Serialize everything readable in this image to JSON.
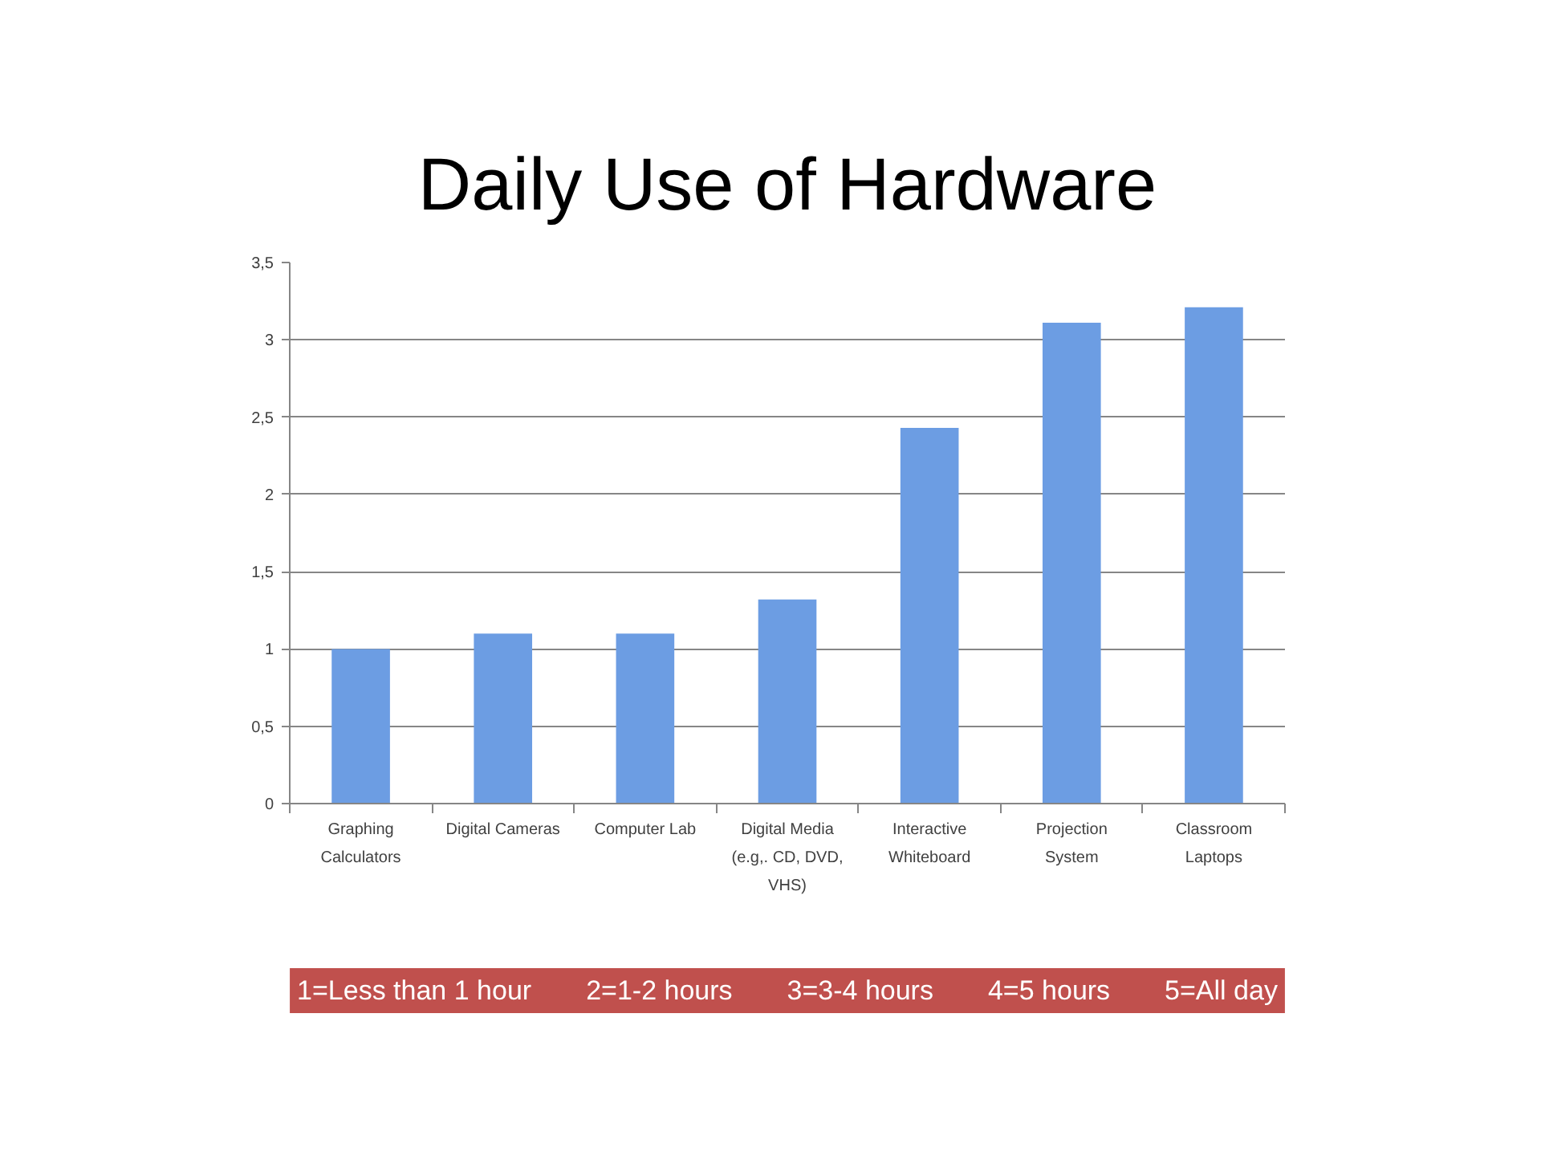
{
  "chart_data": {
    "type": "bar",
    "title": "Daily Use of Hardware",
    "categories": [
      "Graphing Calculators",
      "Digital Cameras",
      "Computer Lab",
      "Digital Media (e.g,. CD, DVD, VHS)",
      "Interactive Whiteboard",
      "Projection System",
      "Classroom Laptops"
    ],
    "values": [
      1.0,
      1.1,
      1.1,
      1.32,
      2.43,
      3.11,
      3.21
    ],
    "color": "#6c9de3",
    "ylim": [
      0,
      3.5
    ],
    "yticks": [
      0,
      {
        "value": 0.5,
        "label": "0,5"
      },
      1,
      {
        "value": 1.5,
        "label": "1,5"
      },
      2,
      {
        "value": 2.5,
        "label": "2,5"
      },
      3,
      {
        "value": 3.5,
        "label": "3,5"
      }
    ],
    "grid": "y",
    "annotations": [
      "1=Less than 1 hour",
      "2=1-2 hours",
      "3=3-4 hours",
      "4=5 hours",
      "5=All day"
    ]
  }
}
